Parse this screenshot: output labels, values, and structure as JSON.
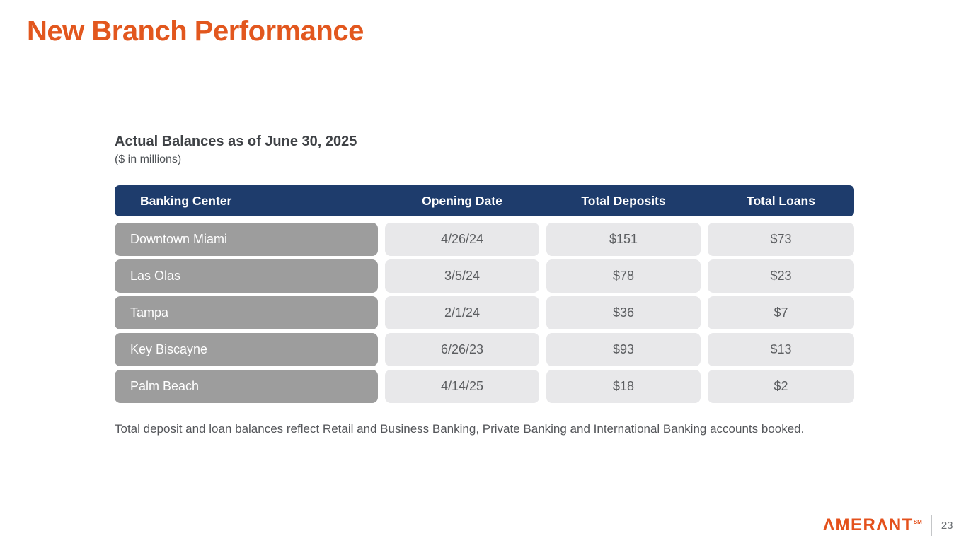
{
  "slide": {
    "title": "New Branch Performance",
    "page_number": "23",
    "logo": {
      "text": "ΛMERΛNT",
      "mark": "SM"
    },
    "footnote": "Total deposit and loan balances reflect Retail and Business Banking, Private Banking and International Banking accounts booked."
  },
  "section": {
    "heading": "Actual Balances as of June 30, 2025",
    "units": "($ in millions)"
  },
  "chart_data": {
    "type": "table",
    "title": "Actual Balances as of June 30, 2025 ($ in millions)",
    "headers": [
      "Banking Center",
      "Opening Date",
      "Total Deposits",
      "Total Loans"
    ],
    "rows": [
      [
        "Downtown Miami",
        "4/26/24",
        "$151",
        "$73"
      ],
      [
        "Las Olas",
        "3/5/24",
        "$78",
        "$23"
      ],
      [
        "Tampa",
        "2/1/24",
        "$36",
        "$7"
      ],
      [
        "Key Biscayne",
        "6/26/23",
        "$93",
        "$13"
      ],
      [
        "Palm Beach",
        "4/14/25",
        "$18",
        "$2"
      ]
    ]
  },
  "colors": {
    "accent_orange": "#E2571E",
    "logo_orange": "#E4511C",
    "header_navy": "#1E3C6C",
    "row_label_gray": "#9D9D9D",
    "value_cell_gray": "#E8E8EA"
  }
}
